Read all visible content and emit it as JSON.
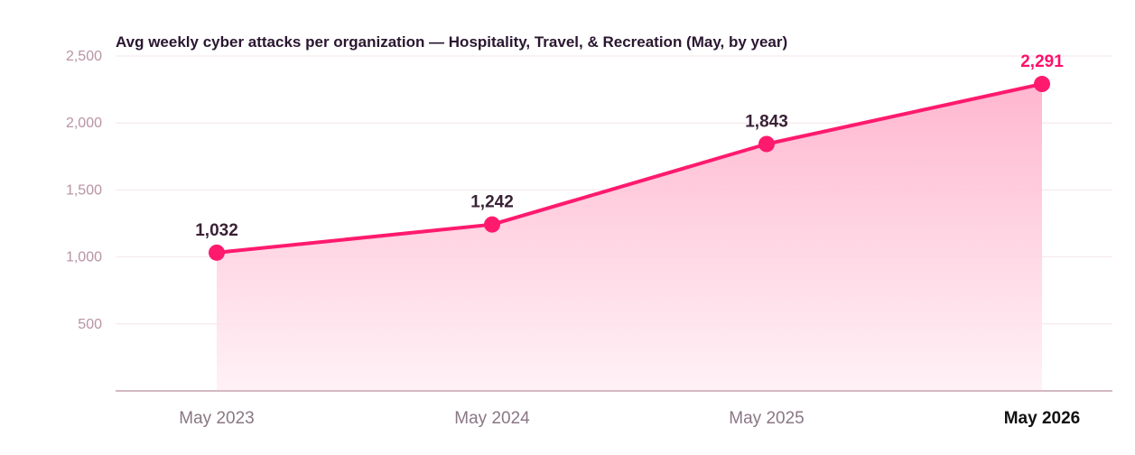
{
  "chart_data": {
    "type": "area",
    "title": "Avg weekly cyber attacks per organization — Hospitality, Travel, & Recreation (May, by year)",
    "categories": [
      "May 2023",
      "May 2024",
      "May 2025",
      "May 2026"
    ],
    "values": [
      1032,
      1242,
      1843,
      2291
    ],
    "data_labels": [
      "1,032",
      "1,242",
      "1,843",
      "2,291"
    ],
    "highlight_index": 3,
    "yticks": [
      500,
      1000,
      1500,
      2000,
      2500
    ],
    "ytick_labels": [
      "500",
      "1,000",
      "1,500",
      "2,000",
      "2,500"
    ],
    "ylim": [
      0,
      2500
    ],
    "grid": true,
    "colors": {
      "line": "#ff1a6e",
      "fill_top": "#ffb3cd",
      "fill_bottom": "#fff0f5",
      "highlight_label": "#ff0f6c"
    }
  }
}
